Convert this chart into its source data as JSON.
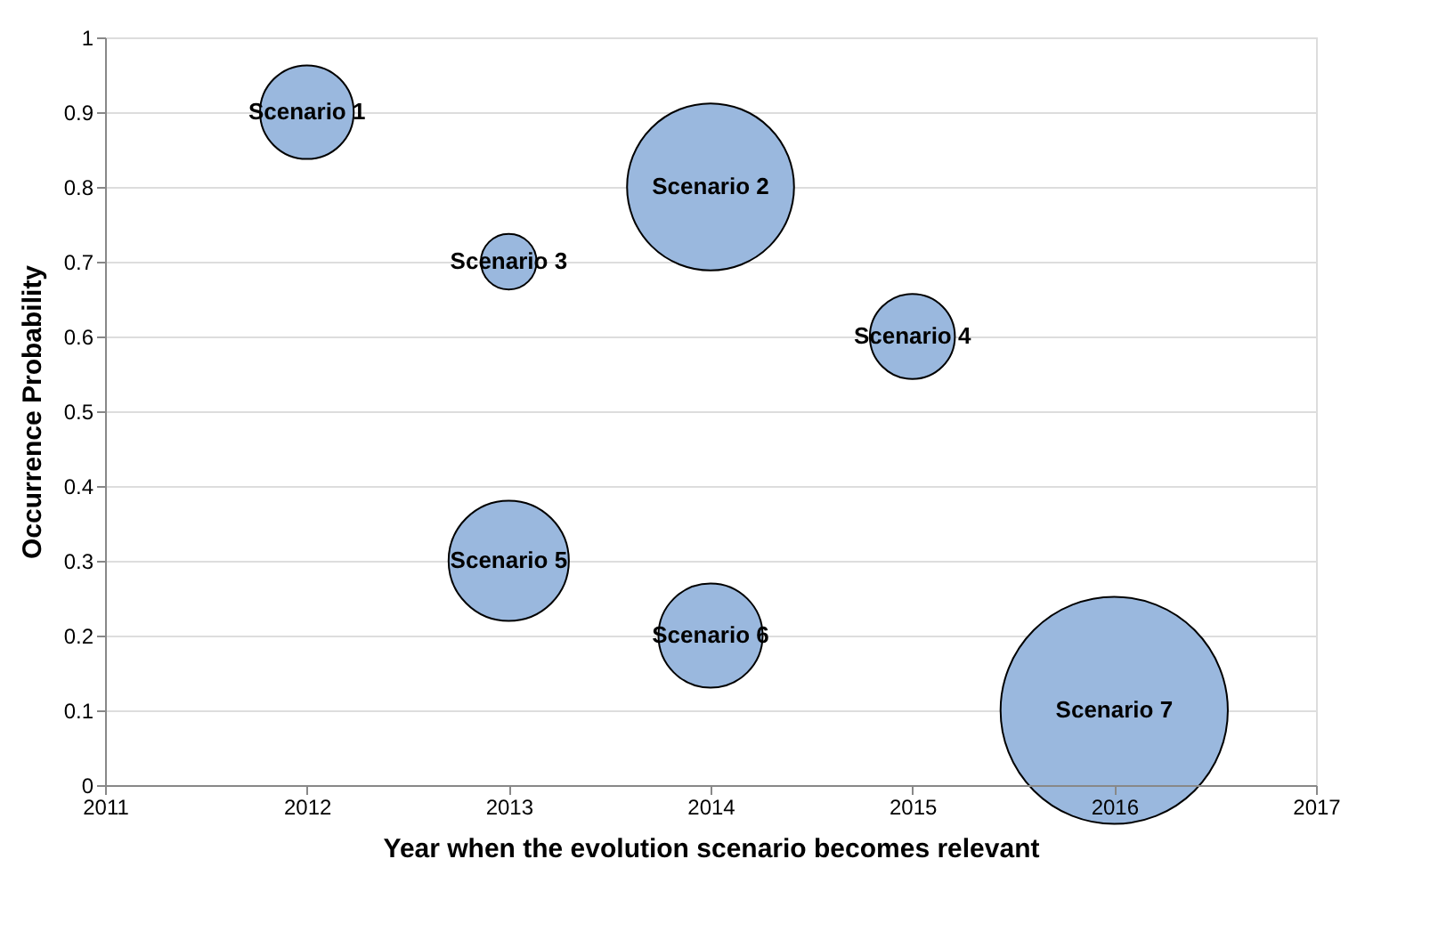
{
  "chart_data": {
    "type": "bubble",
    "xlabel": "Year when the evolution scenario becomes relevant",
    "ylabel": "Occurrence Probability",
    "x": [
      2012,
      2013,
      2014,
      2013,
      2015,
      2014,
      2016
    ],
    "series": [
      {
        "color": "#9ab8de",
        "values": [
          0.9,
          0.7,
          0.8,
          0.3,
          0.6,
          0.2,
          0.1
        ],
        "sizes": [
          0.17,
          0.06,
          0.54,
          0.28,
          0.14,
          0.21,
          1
        ]
      }
    ],
    "xlim": [
      2011,
      2017
    ],
    "xticks": [
      2011,
      2012,
      2013,
      2014,
      2015,
      2016,
      2017
    ],
    "ylim": [
      0,
      1
    ],
    "yticks": [
      {
        "value": 0,
        "label": "0"
      },
      0.1,
      0.2,
      0.3,
      0.4,
      0.5,
      0.6,
      0.7,
      0.8,
      0.9,
      {
        "value": 1,
        "label": "1"
      }
    ],
    "grid": "y",
    "annotations": [
      {
        "text": "Scenario 1",
        "x": 2012,
        "y": 0.9
      },
      {
        "text": "Scenario 3",
        "x": 2013,
        "y": 0.7
      },
      {
        "text": "Scenario 2",
        "x": 2014,
        "y": 0.8
      },
      {
        "text": "Scenario 5",
        "x": 2013,
        "y": 0.3
      },
      {
        "text": "Scenario 4",
        "x": 2015,
        "y": 0.6
      },
      {
        "text": "Scenario 6",
        "x": 2014,
        "y": 0.2
      },
      {
        "text": "Scenario 7",
        "x": 2016,
        "y": 0.1
      }
    ]
  }
}
